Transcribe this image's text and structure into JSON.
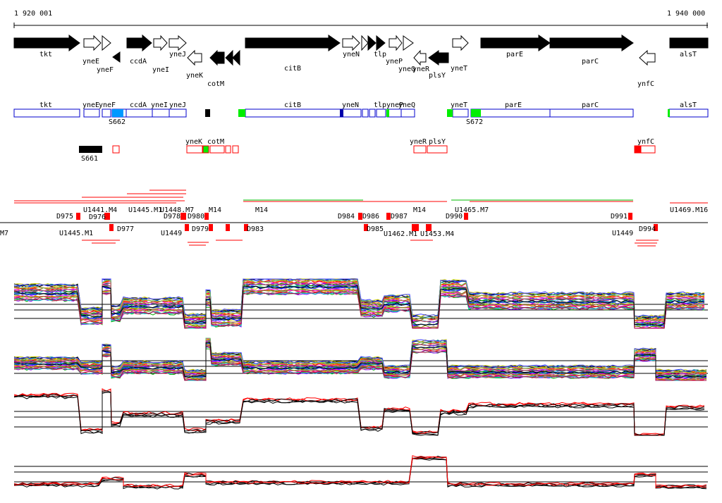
{
  "coords": {
    "start": "1 920 001",
    "end": "1 940 000"
  },
  "colors": {
    "gene_fill": "#000000",
    "box_stroke": "#0000cc",
    "red": "#ff0000",
    "green": "#00ee00",
    "blue": "#0099ff",
    "navy": "#0000aa"
  },
  "genes": {
    "tkt": "tkt",
    "yneE": "yneE",
    "yneF": "yneF",
    "ccdA": "ccdA",
    "yneI": "yneI",
    "yneJ": "yneJ",
    "yneK": "yneK",
    "cotM": "cotM",
    "citB": "citB",
    "yneN": "yneN",
    "tlp": "tlp",
    "yneP": "yneP",
    "yneQ": "yneQ",
    "yneR": "yneR",
    "plsY": "plsY",
    "yneT": "yneT",
    "parE": "parE",
    "parC": "parC",
    "ynfC": "ynfC",
    "alsT": "alsT"
  },
  "sites": {
    "s662": "S662",
    "s672": "S672",
    "s661": "S661"
  },
  "probes": {
    "d975": "D975",
    "d976": "D976",
    "d977": "D977",
    "d978": "D978",
    "d979": "D979",
    "d980": "D980",
    "d983": "D983",
    "d984": "D984",
    "d985": "D985",
    "d986": "D986",
    "d987": "D987",
    "d990": "D990",
    "d991": "D991",
    "d994": "D994",
    "u1441": "U1441.M4",
    "u1445": "U1445.M1",
    "u1448": "U1448.M7",
    "u1462": "U1462.M1",
    "u1465": "U1465.M7",
    "u1469": "U1469.M16",
    "u1449": "U1449",
    "u1453": "U1453.M4",
    "m7": "M7",
    "m14": "M14"
  }
}
